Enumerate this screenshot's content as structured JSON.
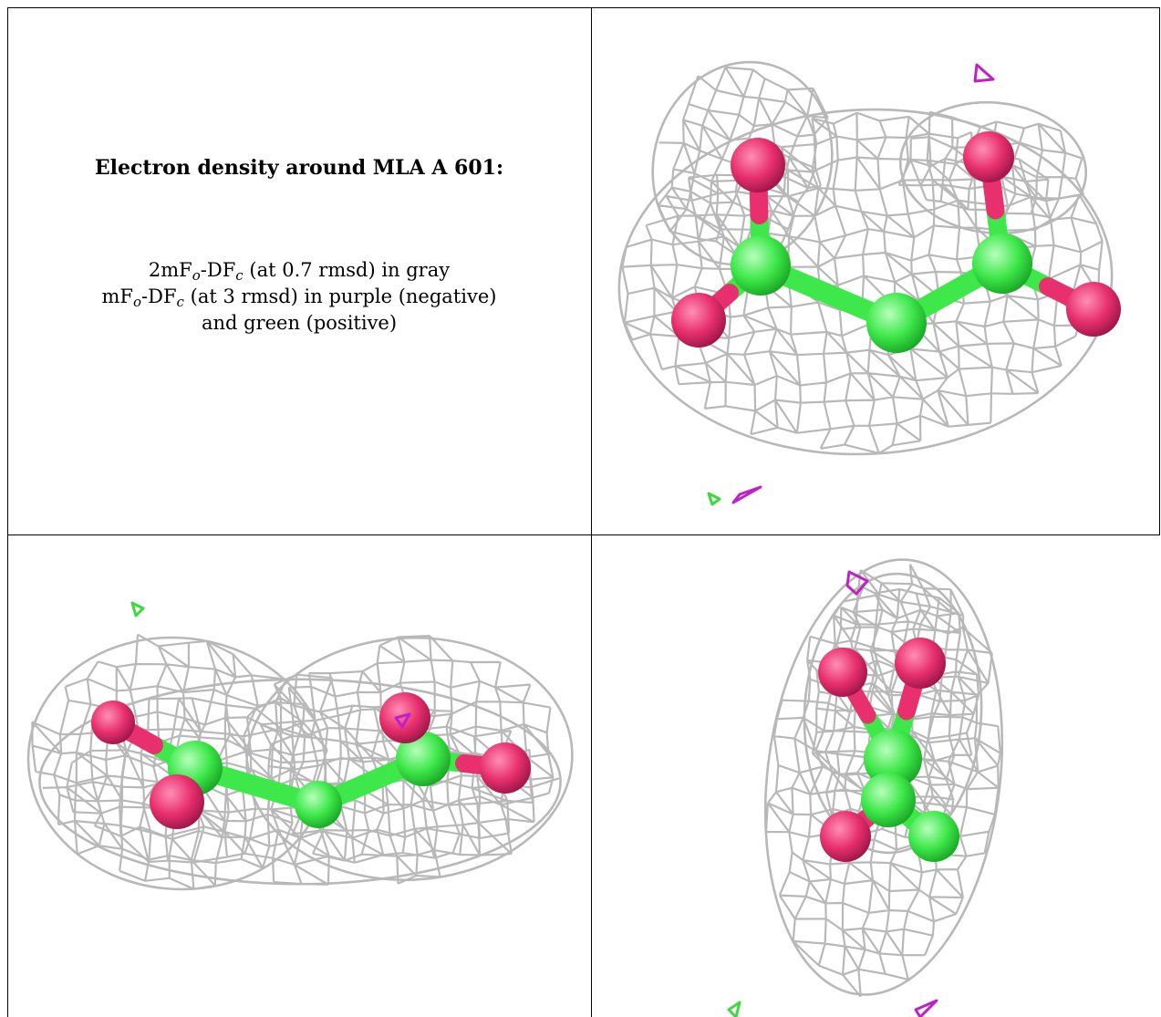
{
  "caption": {
    "title": "Electron density around MLA A 601:",
    "line1": {
      "pre": "2mF",
      "sub1": "o",
      "mid": "-DF",
      "sub2": "c",
      "post": " (at 0.7 rmsd) in gray"
    },
    "line2": {
      "pre": "mF",
      "sub1": "o",
      "mid": "-DF",
      "sub2": "c",
      "post": " (at 3 rmsd) in purple (negative)"
    },
    "line3": "and green (positive)"
  },
  "colors": {
    "mesh": "#b8b8b8",
    "carbon": "#3ee84a",
    "oxygen": "#e8306e",
    "negative": "#c020c8",
    "positive": "#40d840"
  },
  "panels": [
    "view-top-right",
    "view-bottom-left",
    "view-bottom-right"
  ]
}
